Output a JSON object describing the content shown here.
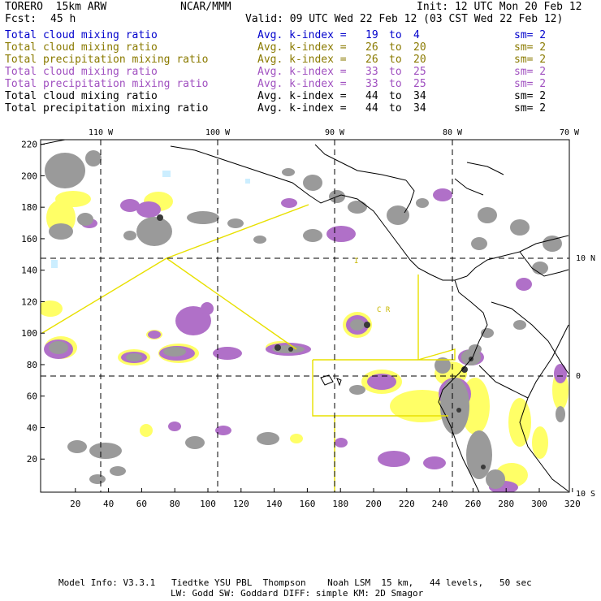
{
  "header": {
    "model": "TORERO  15km ARW",
    "org": "NCAR/MMM",
    "init": "Init: 12 UTC Mon 20 Feb 12",
    "fcst_label": "Fcst:",
    "fcst_value": "45 h",
    "valid": "Valid: 09 UTC Wed 22 Feb 12 (03 CST Wed 22 Feb 12)"
  },
  "fields": [
    {
      "name": "Total cloud mixing ratio",
      "kindex": "Avg. k-index =",
      "v1": "19",
      "to": "to",
      "v2": "4",
      "sm": "sm= 2",
      "color": "#0000cc"
    },
    {
      "name": "Total cloud mixing ratio",
      "kindex": "Avg. k-index =",
      "v1": "26",
      "to": "to",
      "v2": "20",
      "sm": "sm= 2",
      "color": "#8a7a00"
    },
    {
      "name": "Total precipitation mixing ratio",
      "kindex": "Avg. k-index =",
      "v1": "26",
      "to": "to",
      "v2": "20",
      "sm": "sm= 2",
      "color": "#8a7a00"
    },
    {
      "name": "Total cloud mixing ratio",
      "kindex": "Avg. k-index =",
      "v1": "33",
      "to": "to",
      "v2": "25",
      "sm": "sm= 2",
      "color": "#a050c0"
    },
    {
      "name": "Total precipitation mixing ratio",
      "kindex": "Avg. k-index =",
      "v1": "33",
      "to": "to",
      "v2": "25",
      "sm": "sm= 2",
      "color": "#a050c0"
    },
    {
      "name": "Total cloud mixing ratio",
      "kindex": "Avg. k-index =",
      "v1": "44",
      "to": "to",
      "v2": "34",
      "sm": "sm= 2",
      "color": "#000000"
    },
    {
      "name": "Total precipitation mixing ratio",
      "kindex": "Avg. k-index =",
      "v1": "44",
      "to": "to",
      "v2": "34",
      "sm": "sm= 2",
      "color": "#000000"
    }
  ],
  "map": {
    "lon_labels": [
      "110 W",
      "100 W",
      "90 W",
      "80 W",
      "70 W"
    ],
    "lat_labels": [
      "10 N",
      "0",
      "10 S"
    ],
    "x_ticks": [
      "20",
      "40",
      "60",
      "80",
      "100",
      "120",
      "140",
      "160",
      "180",
      "200",
      "220",
      "240",
      "260",
      "280",
      "300",
      "320"
    ],
    "y_ticks": [
      "220",
      "200",
      "180",
      "160",
      "140",
      "120",
      "100",
      "80",
      "60",
      "40",
      "20"
    ],
    "region_labels": [
      "I",
      "C R"
    ],
    "colors": {
      "gray": "#9a9a9a",
      "dark": "#4a4a4a",
      "yellow": "#ffff66",
      "purple": "#b070c8",
      "cyan": "#cceeff",
      "box": "#e8e000"
    }
  },
  "footer": {
    "line1": "Model Info: V3.3.1   Tiedtke YSU PBL  Thompson    Noah LSM  15 km,   44 levels,   50 sec",
    "line2": "LW: Godd SW: Goddard DIFF: simple KM: 2D Smagor"
  }
}
